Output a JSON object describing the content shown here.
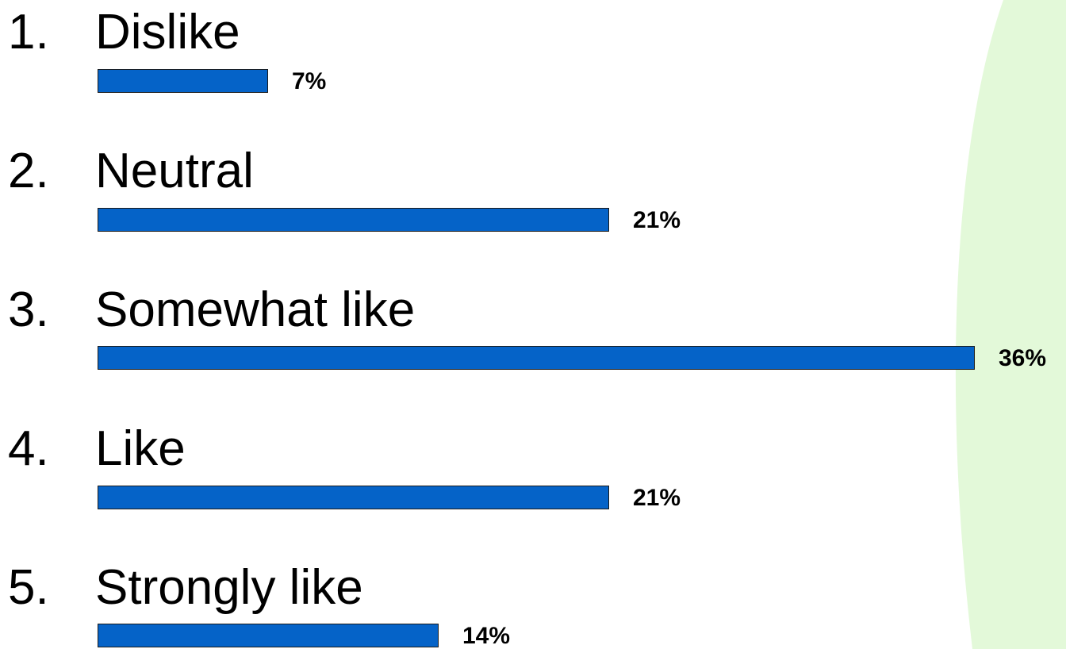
{
  "colors": {
    "bar_fill": "#0563c8",
    "bar_border": "#1a1a1a",
    "background_accent": "#e3f9d9"
  },
  "chart_data": {
    "type": "bar",
    "orientation": "horizontal",
    "categories": [
      "Dislike",
      "Neutral",
      "Somewhat like",
      "Like",
      "Strongly like"
    ],
    "numbers": [
      "1.",
      "2.",
      "3.",
      "4.",
      "5."
    ],
    "values": [
      7,
      21,
      36,
      21,
      14
    ],
    "value_labels": [
      "7%",
      "21%",
      "36%",
      "21%",
      "14%"
    ],
    "unit": "%",
    "xlim": [
      0,
      36
    ]
  }
}
